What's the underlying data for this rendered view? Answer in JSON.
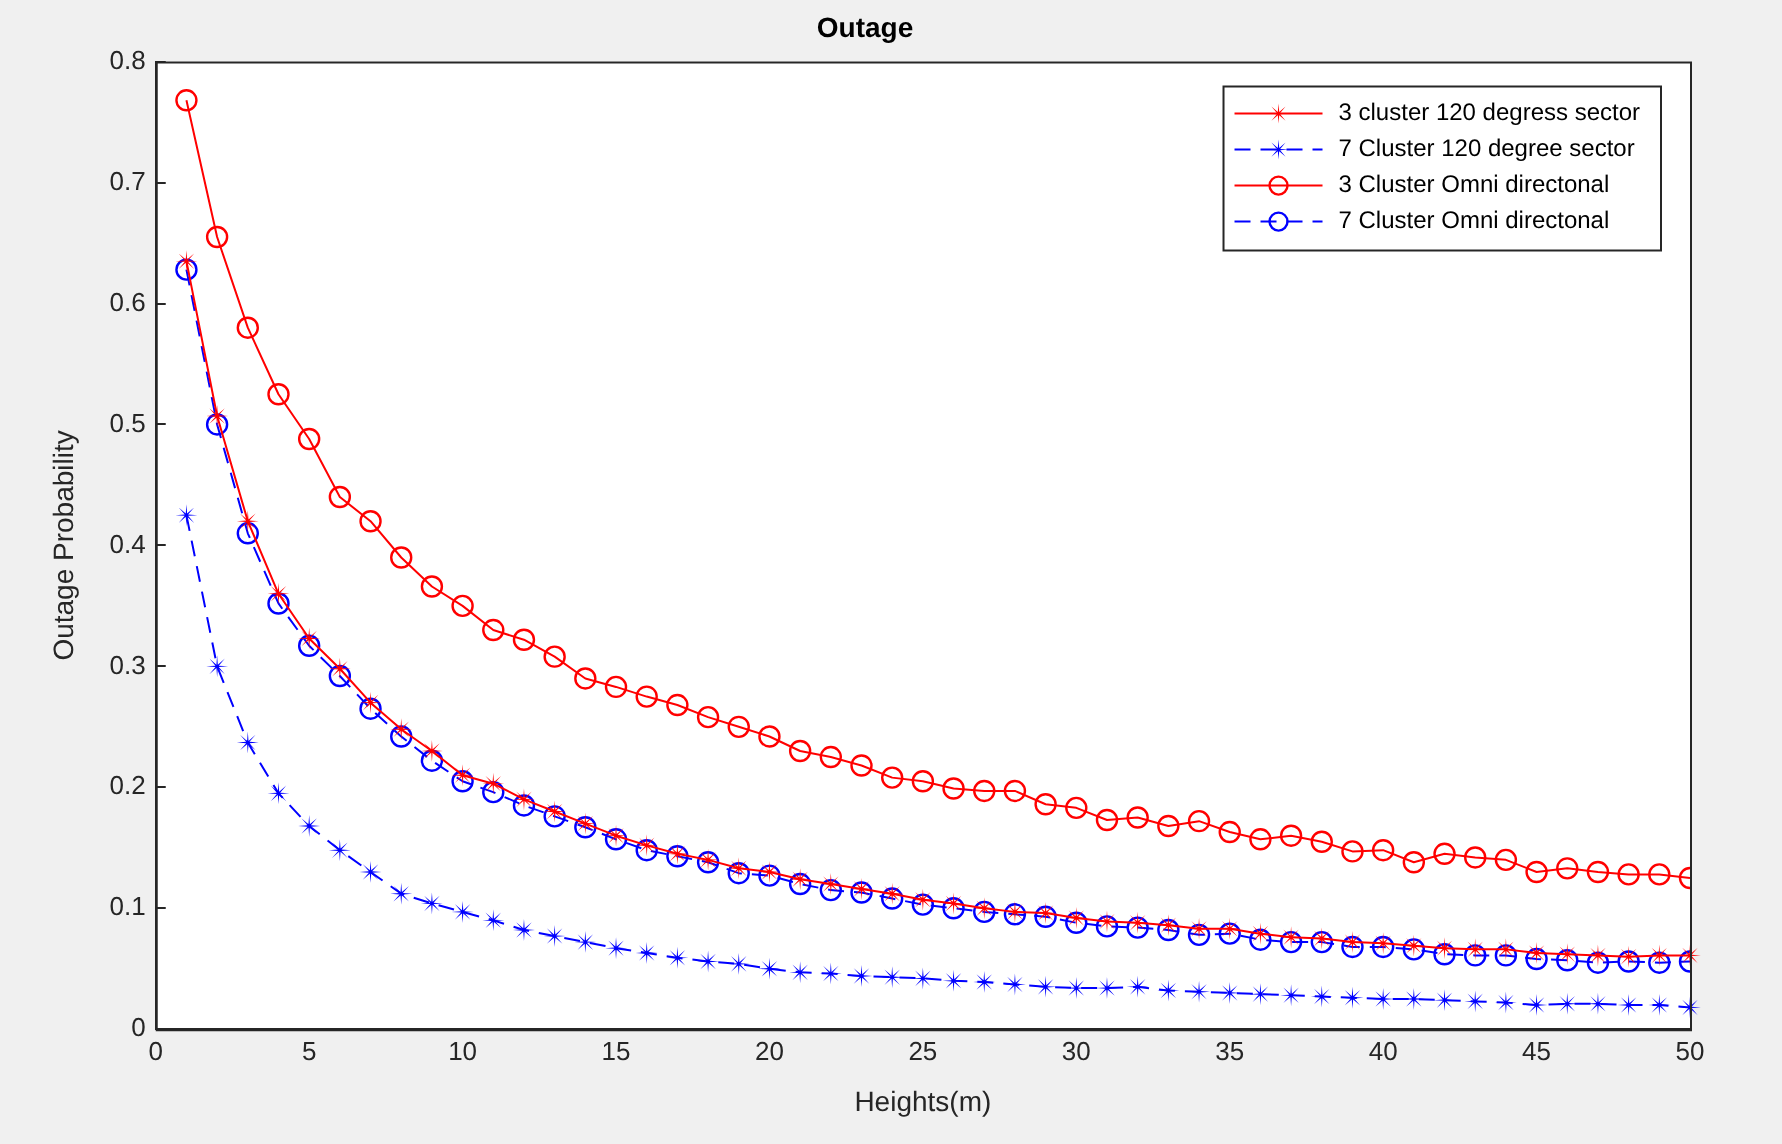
{
  "chart_data": {
    "type": "line",
    "title": "Outage",
    "xlabel": "Heights(m)",
    "ylabel": "Outage Probability",
    "x": [
      1,
      2,
      3,
      4,
      5,
      6,
      7,
      8,
      9,
      10,
      11,
      12,
      13,
      14,
      15,
      16,
      17,
      18,
      19,
      20,
      21,
      22,
      23,
      24,
      25,
      26,
      27,
      28,
      29,
      30,
      31,
      32,
      33,
      34,
      35,
      36,
      37,
      38,
      39,
      40,
      41,
      42,
      43,
      44,
      45,
      46,
      47,
      48,
      49,
      50
    ],
    "xlim": [
      0,
      50
    ],
    "xticks": [
      0,
      5,
      10,
      15,
      20,
      25,
      30,
      35,
      40,
      45,
      50
    ],
    "ylim": [
      0,
      0.8
    ],
    "yticks": [
      0,
      0.1,
      0.2,
      0.3,
      0.4,
      0.5,
      0.6,
      0.7,
      0.8
    ],
    "grid": false,
    "legend": "top right",
    "series": [
      {
        "name": "3 cluster 120 degress sector",
        "color": "#ff0000",
        "marker": "star",
        "line_style": "solid",
        "values": [
          0.635,
          0.507,
          0.42,
          0.36,
          0.323,
          0.298,
          0.27,
          0.248,
          0.23,
          0.21,
          0.203,
          0.19,
          0.18,
          0.17,
          0.16,
          0.152,
          0.145,
          0.14,
          0.133,
          0.13,
          0.124,
          0.12,
          0.116,
          0.112,
          0.107,
          0.104,
          0.1,
          0.097,
          0.096,
          0.092,
          0.089,
          0.088,
          0.086,
          0.083,
          0.083,
          0.079,
          0.076,
          0.075,
          0.072,
          0.071,
          0.069,
          0.067,
          0.066,
          0.066,
          0.063,
          0.062,
          0.061,
          0.06,
          0.061,
          0.061
        ]
      },
      {
        "name": "7 Cluster 120 degree sector",
        "color": "#0000ff",
        "marker": "star",
        "line_style": "dashed",
        "values": [
          0.425,
          0.3,
          0.237,
          0.195,
          0.168,
          0.148,
          0.13,
          0.112,
          0.104,
          0.097,
          0.09,
          0.082,
          0.077,
          0.072,
          0.067,
          0.063,
          0.059,
          0.056,
          0.054,
          0.05,
          0.047,
          0.046,
          0.044,
          0.043,
          0.042,
          0.04,
          0.039,
          0.037,
          0.035,
          0.034,
          0.034,
          0.035,
          0.032,
          0.031,
          0.03,
          0.029,
          0.028,
          0.027,
          0.026,
          0.025,
          0.025,
          0.024,
          0.023,
          0.022,
          0.02,
          0.021,
          0.021,
          0.02,
          0.02,
          0.018
        ]
      },
      {
        "name": "3 Cluster Omni directonal",
        "color": "#ff0000",
        "marker": "circle",
        "line_style": "solid",
        "values": [
          0.768,
          0.655,
          0.58,
          0.525,
          0.488,
          0.44,
          0.42,
          0.39,
          0.366,
          0.35,
          0.33,
          0.322,
          0.308,
          0.29,
          0.283,
          0.275,
          0.268,
          0.258,
          0.25,
          0.242,
          0.23,
          0.225,
          0.218,
          0.208,
          0.205,
          0.199,
          0.197,
          0.197,
          0.186,
          0.183,
          0.173,
          0.175,
          0.168,
          0.172,
          0.163,
          0.157,
          0.16,
          0.155,
          0.147,
          0.148,
          0.138,
          0.145,
          0.142,
          0.14,
          0.13,
          0.133,
          0.13,
          0.128,
          0.128,
          0.125
        ]
      },
      {
        "name": "7 Cluster Omni directonal",
        "color": "#0000ff",
        "marker": "circle",
        "line_style": "dashed",
        "values": [
          0.628,
          0.5,
          0.41,
          0.352,
          0.317,
          0.292,
          0.265,
          0.242,
          0.222,
          0.205,
          0.196,
          0.185,
          0.176,
          0.167,
          0.157,
          0.148,
          0.143,
          0.138,
          0.129,
          0.127,
          0.12,
          0.115,
          0.113,
          0.108,
          0.103,
          0.1,
          0.097,
          0.095,
          0.093,
          0.088,
          0.085,
          0.084,
          0.082,
          0.078,
          0.079,
          0.074,
          0.072,
          0.072,
          0.068,
          0.068,
          0.066,
          0.062,
          0.061,
          0.061,
          0.058,
          0.057,
          0.055,
          0.056,
          0.055,
          0.056
        ]
      }
    ]
  }
}
